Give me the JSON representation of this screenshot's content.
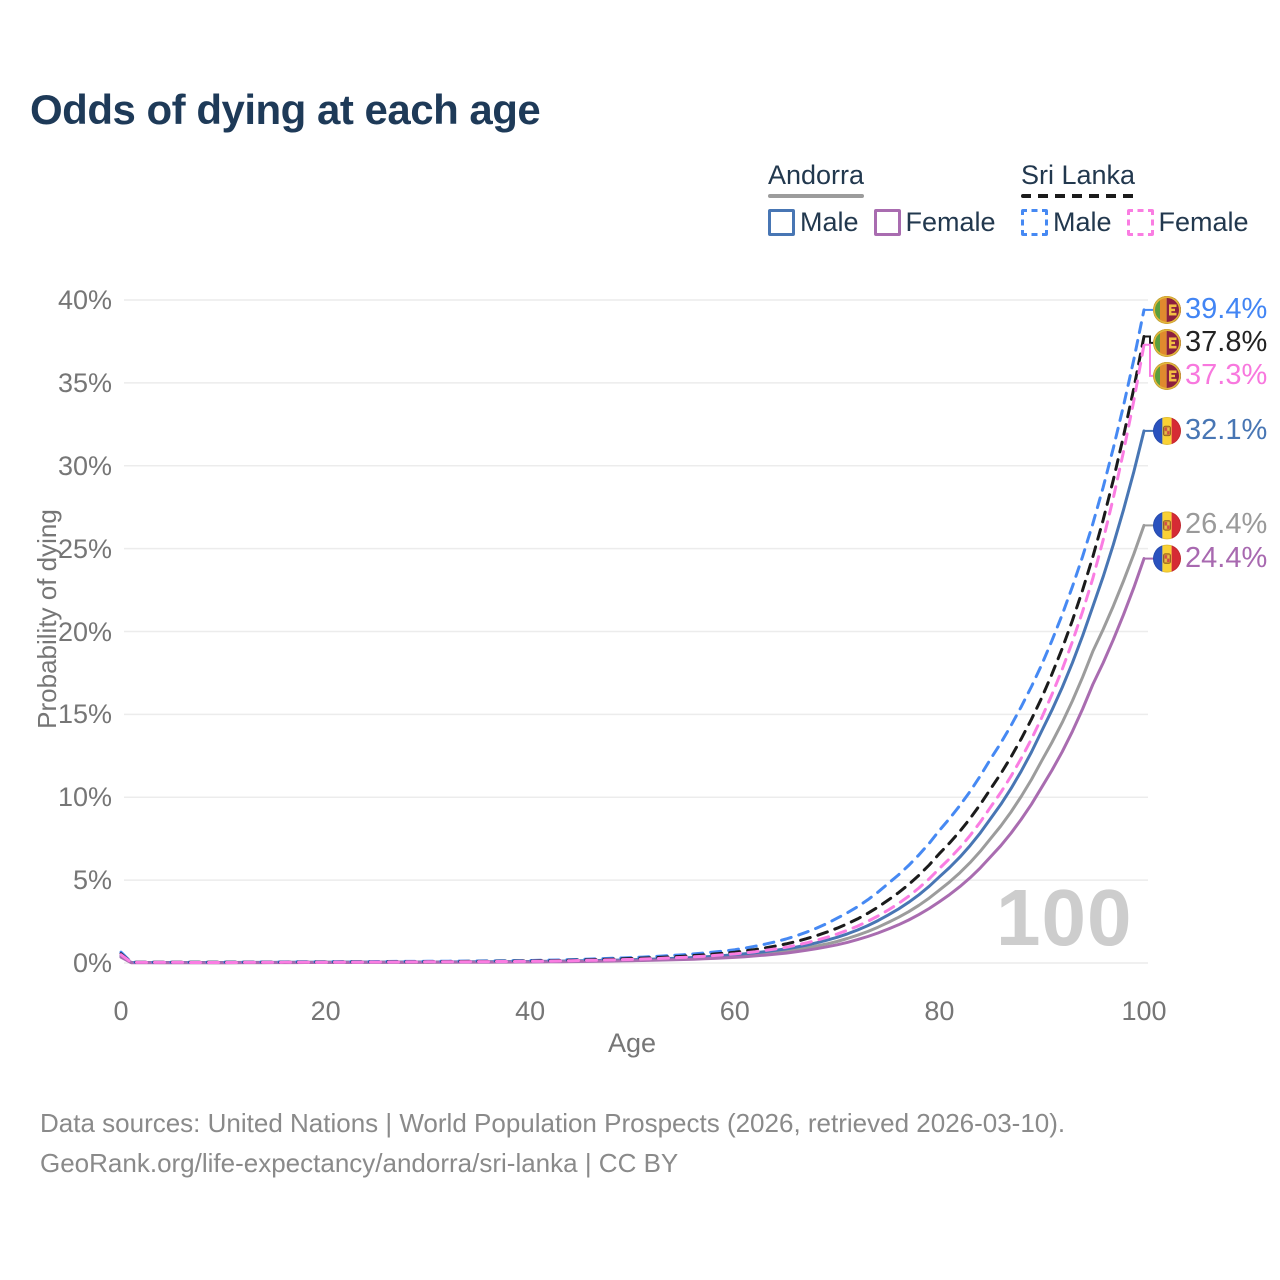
{
  "title": "Odds of dying at each age",
  "watermark_age": "100",
  "legend": {
    "groups": [
      {
        "country": "Andorra",
        "line_style": "solid",
        "underline_color": "#9c9c9c",
        "items": [
          {
            "label": "Male",
            "color": "#4876B4",
            "style": "solid"
          },
          {
            "label": "Female",
            "color": "#A96CB0",
            "style": "solid"
          }
        ]
      },
      {
        "country": "Sri Lanka",
        "line_style": "dashed",
        "underline_color": "#1b1b1b",
        "items": [
          {
            "label": "Male",
            "color": "#4689F3",
            "style": "dashed"
          },
          {
            "label": "Female",
            "color": "#FA7DE2",
            "style": "dashed"
          }
        ]
      }
    ]
  },
  "footer": {
    "line1": "Data sources: United Nations | World Population Prospects (2026, retrieved 2026-03-10).",
    "line2": "GeoRank.org/life-expectancy/andorra/sri-lanka | CC BY"
  },
  "style": {
    "title_color": "#1e3a58",
    "grid_color": "#ececec",
    "axis_text_color": "#767676",
    "footer_color": "#8a8a8a",
    "watermark_color": "#cdcdcd",
    "legend_text_color": "#22384e"
  },
  "chart_data": {
    "type": "line",
    "title": "Odds of dying at each age",
    "xlabel": "Age",
    "ylabel": "Probability of dying",
    "xlim": [
      0,
      100
    ],
    "ylim_pct": [
      0,
      40
    ],
    "x_ticks": [
      0,
      20,
      40,
      60,
      80,
      100
    ],
    "y_ticks_pct": [
      0,
      5,
      10,
      15,
      20,
      25,
      30,
      35,
      40
    ],
    "grid": true,
    "legend_position": "top-right",
    "ages": [
      0,
      1,
      10,
      20,
      30,
      40,
      45,
      50,
      55,
      60,
      65,
      70,
      75,
      80,
      85,
      90,
      95,
      100
    ],
    "series": [
      {
        "name": "Andorra — Total",
        "country": "Andorra",
        "sex": "total",
        "style": "solid",
        "color": "#9C9C9C",
        "label_color": "#9a9a9a",
        "flag": "andorra",
        "end_label": "26.4%",
        "end_value_pct": 26.4,
        "values_pct": [
          0.4,
          0.03,
          0.02,
          0.04,
          0.05,
          0.08,
          0.11,
          0.17,
          0.26,
          0.42,
          0.72,
          1.3,
          2.45,
          4.4,
          7.5,
          12.2,
          18.8,
          26.4
        ]
      },
      {
        "name": "Andorra — Male",
        "country": "Andorra",
        "sex": "male",
        "style": "solid",
        "color": "#4876B4",
        "label_color": "#4876B4",
        "flag": "andorra",
        "end_label": "32.1%",
        "end_value_pct": 32.1,
        "values_pct": [
          0.45,
          0.03,
          0.03,
          0.05,
          0.06,
          0.09,
          0.13,
          0.2,
          0.3,
          0.5,
          0.85,
          1.55,
          2.9,
          5.2,
          8.7,
          14.0,
          21.5,
          32.1
        ]
      },
      {
        "name": "Andorra — Female",
        "country": "Andorra",
        "sex": "female",
        "style": "solid",
        "color": "#A96CB0",
        "label_color": "#A869B0",
        "flag": "andorra",
        "end_label": "24.4%",
        "end_value_pct": 24.4,
        "values_pct": [
          0.35,
          0.02,
          0.02,
          0.03,
          0.04,
          0.06,
          0.09,
          0.14,
          0.21,
          0.34,
          0.6,
          1.1,
          2.05,
          3.7,
          6.4,
          10.6,
          16.8,
          24.4
        ]
      },
      {
        "name": "Sri Lanka — Male",
        "country": "Sri Lanka",
        "sex": "male",
        "style": "dashed",
        "color": "#4689F3",
        "label_color": "#4285F4",
        "flag": "sri-lanka",
        "end_label": "39.4%",
        "end_value_pct": 39.4,
        "values_pct": [
          0.65,
          0.05,
          0.05,
          0.08,
          0.1,
          0.15,
          0.22,
          0.33,
          0.5,
          0.8,
          1.45,
          2.7,
          4.8,
          8.0,
          12.3,
          18.0,
          26.5,
          39.4
        ]
      },
      {
        "name": "Sri Lanka — Total",
        "country": "Sri Lanka",
        "sex": "total",
        "style": "dashed",
        "color": "#1B1B1B",
        "label_color": "#222222",
        "flag": "sri-lanka",
        "end_label": "37.8%",
        "end_value_pct": 37.8,
        "values_pct": [
          0.55,
          0.04,
          0.04,
          0.06,
          0.08,
          0.12,
          0.18,
          0.27,
          0.41,
          0.65,
          1.15,
          2.1,
          3.8,
          6.6,
          10.5,
          16.0,
          24.5,
          37.8
        ]
      },
      {
        "name": "Sri Lanka — Female",
        "country": "Sri Lanka",
        "sex": "female",
        "style": "dashed",
        "color": "#FA7DE2",
        "label_color": "#F878DE",
        "flag": "sri-lanka",
        "end_label": "37.3%",
        "end_value_pct": 37.3,
        "values_pct": [
          0.5,
          0.04,
          0.03,
          0.05,
          0.07,
          0.1,
          0.15,
          0.22,
          0.34,
          0.55,
          0.95,
          1.75,
          3.2,
          5.7,
          9.4,
          14.8,
          23.2,
          37.3
        ]
      }
    ]
  }
}
